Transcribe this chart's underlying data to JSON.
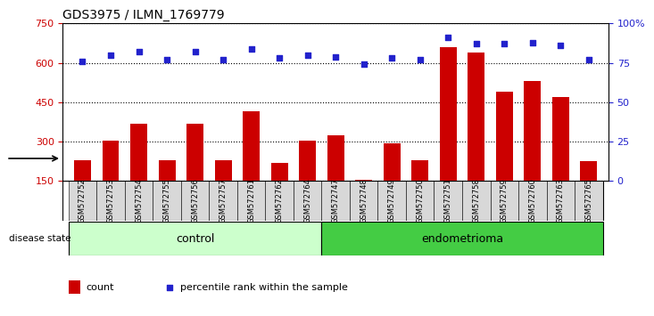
{
  "title": "GDS3975 / ILMN_1769779",
  "samples": [
    "GSM572752",
    "GSM572753",
    "GSM572754",
    "GSM572755",
    "GSM572756",
    "GSM572757",
    "GSM572761",
    "GSM572762",
    "GSM572764",
    "GSM572747",
    "GSM572748",
    "GSM572749",
    "GSM572750",
    "GSM572751",
    "GSM572758",
    "GSM572759",
    "GSM572760",
    "GSM572763",
    "GSM572765"
  ],
  "counts": [
    230,
    305,
    370,
    228,
    370,
    228,
    415,
    220,
    305,
    325,
    155,
    295,
    228,
    660,
    640,
    490,
    530,
    470,
    225
  ],
  "percentile_ranks": [
    76,
    80,
    82,
    77,
    82,
    77,
    84,
    78,
    80,
    79,
    74,
    78,
    77,
    91,
    87,
    87,
    88,
    86,
    77
  ],
  "group_labels": [
    "control",
    "endometrioma"
  ],
  "n_control": 9,
  "n_endometrioma": 10,
  "left_ylim": [
    150,
    750
  ],
  "left_yticks": [
    150,
    300,
    450,
    600,
    750
  ],
  "right_ylim": [
    0,
    100
  ],
  "right_yticks": [
    0,
    25,
    50,
    75,
    100
  ],
  "right_yticklabels": [
    "0",
    "25",
    "50",
    "75",
    "100%"
  ],
  "bar_color": "#cc0000",
  "dot_color": "#2222cc",
  "control_bg": "#ccffcc",
  "endometrioma_bg": "#44cc44",
  "sample_bg": "#d8d8d8",
  "grid_color": "black",
  "left_tick_color": "#cc0000",
  "right_tick_color": "#2222cc",
  "legend_count_color": "#cc0000",
  "legend_pct_color": "#2222cc",
  "disease_state_label": "disease state",
  "count_label": "count",
  "percentile_label": "percentile rank within the sample"
}
